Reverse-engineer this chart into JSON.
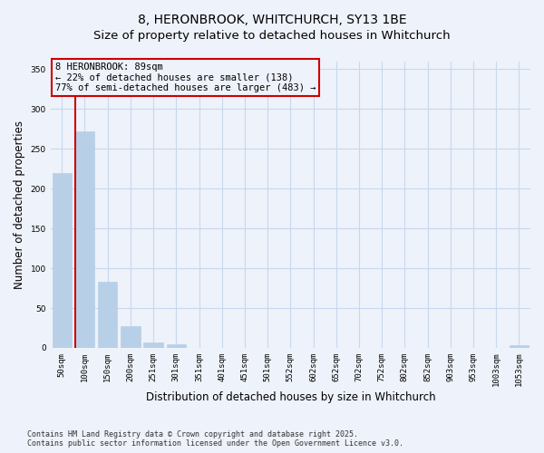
{
  "title_line1": "8, HERONBROOK, WHITCHURCH, SY13 1BE",
  "title_line2": "Size of property relative to detached houses in Whitchurch",
  "xlabel": "Distribution of detached houses by size in Whitchurch",
  "ylabel": "Number of detached properties",
  "categories": [
    "50sqm",
    "100sqm",
    "150sqm",
    "200sqm",
    "251sqm",
    "301sqm",
    "351sqm",
    "401sqm",
    "451sqm",
    "501sqm",
    "552sqm",
    "602sqm",
    "652sqm",
    "702sqm",
    "752sqm",
    "802sqm",
    "852sqm",
    "903sqm",
    "953sqm",
    "1003sqm",
    "1053sqm"
  ],
  "values": [
    220,
    272,
    83,
    27,
    7,
    4,
    0,
    0,
    0,
    0,
    0,
    0,
    0,
    0,
    0,
    0,
    0,
    0,
    0,
    0,
    3
  ],
  "bar_color": "#b8cfe8",
  "bar_edgecolor": "#b8cfe8",
  "annotation_box_text": "8 HERONBROOK: 89sqm\n← 22% of detached houses are smaller (138)\n77% of semi-detached houses are larger (483) →",
  "vline_color": "#cc0000",
  "vline_x": 0.575,
  "box_edge_color": "#cc0000",
  "grid_color": "#c8d8ee",
  "background_color": "#eef2fa",
  "ylim": [
    0,
    360
  ],
  "yticks": [
    0,
    50,
    100,
    150,
    200,
    250,
    300,
    350
  ],
  "footnote": "Contains HM Land Registry data © Crown copyright and database right 2025.\nContains public sector information licensed under the Open Government Licence v3.0.",
  "title_fontsize": 10,
  "tick_fontsize": 6.5,
  "label_fontsize": 8.5,
  "annotation_fontsize": 7.5
}
